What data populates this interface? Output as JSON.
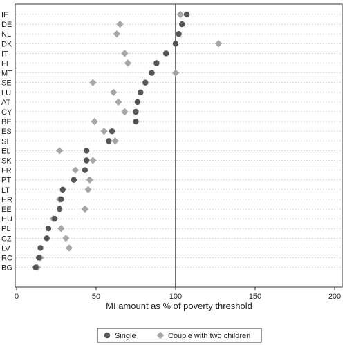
{
  "chart_data": {
    "type": "scatter",
    "orientation": "horizontal-dot-plot",
    "xlabel": "MI amount as % of poverty threshold",
    "ylabel": "",
    "xlim": [
      0,
      200
    ],
    "xticks": [
      0,
      50,
      100,
      150,
      200
    ],
    "reference_line_x": 100,
    "grid": "dotted horizontal lines per category",
    "legend_position": "bottom",
    "categories": [
      "IE",
      "DE",
      "NL",
      "DK",
      "IT",
      "FI",
      "MT",
      "SE",
      "LU",
      "AT",
      "CY",
      "BE",
      "ES",
      "SI",
      "EL",
      "SK",
      "FR",
      "PT",
      "LT",
      "HR",
      "EE",
      "HU",
      "PL",
      "CZ",
      "LV",
      "RO",
      "BG"
    ],
    "series": [
      {
        "name": "Single",
        "marker": "circle",
        "color": "#555555",
        "values": [
          107,
          104,
          102,
          100,
          94,
          88,
          85,
          81,
          78,
          76,
          75,
          75,
          60,
          58,
          44,
          44,
          43,
          36,
          29,
          28,
          27,
          24,
          20,
          19,
          15,
          14,
          12
        ]
      },
      {
        "name": "Couple with two children",
        "marker": "diamond",
        "color": "#a6a6a6",
        "values": [
          103,
          65,
          63,
          127,
          68,
          70,
          100,
          48,
          61,
          64,
          68,
          49,
          55,
          62,
          27,
          48,
          37,
          46,
          45,
          27,
          43,
          23,
          28,
          31,
          33,
          15,
          13
        ]
      }
    ]
  }
}
